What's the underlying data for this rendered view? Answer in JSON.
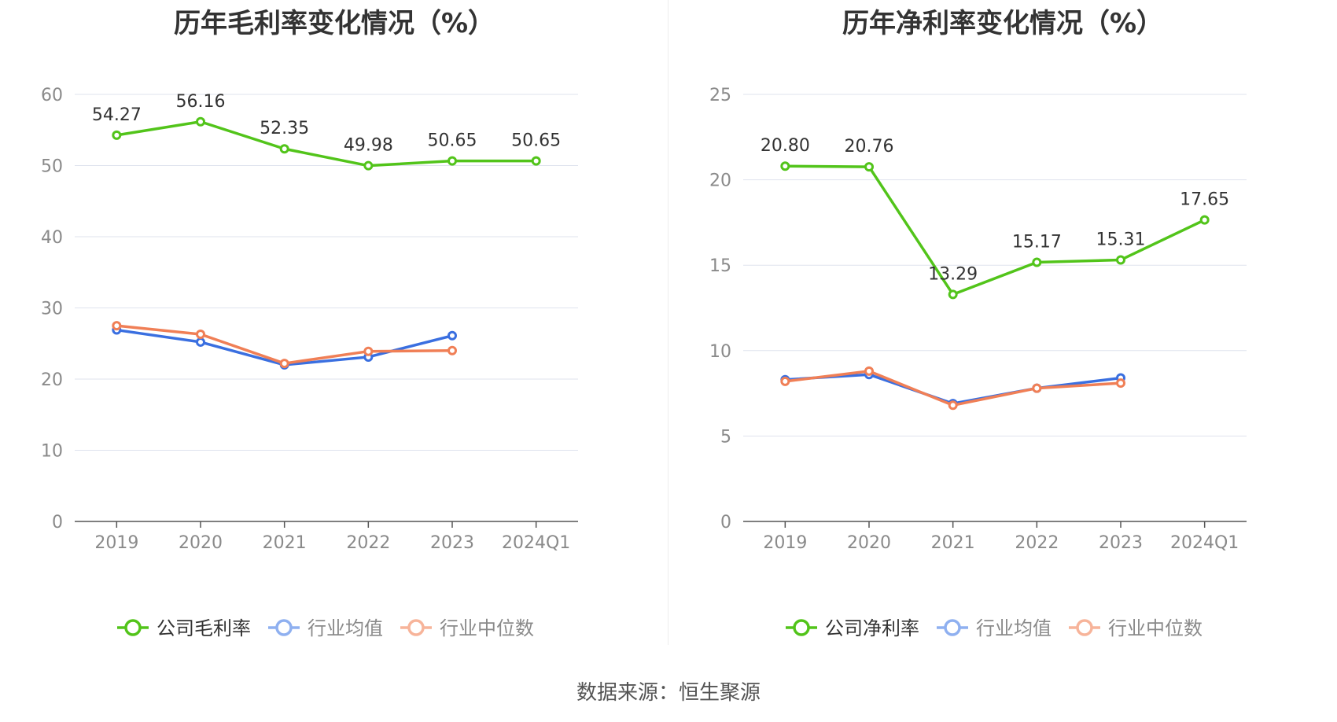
{
  "chart_data": [
    {
      "type": "line",
      "title": "历年毛利率变化情况（%）",
      "categories": [
        "2019",
        "2020",
        "2021",
        "2022",
        "2023",
        "2024Q1"
      ],
      "ylim": [
        0,
        60
      ],
      "yticks": [
        0,
        10,
        20,
        30,
        40,
        50,
        60
      ],
      "grid": true,
      "legend_position": "bottom",
      "series": [
        {
          "name": "公司毛利率",
          "color": "#52c41a",
          "values": [
            54.27,
            56.16,
            52.35,
            49.98,
            50.65,
            50.65
          ],
          "labels": [
            "54.27",
            "56.16",
            "52.35",
            "49.98",
            "50.65",
            "50.65"
          ]
        },
        {
          "name": "行业均值",
          "color": "#3a6fe0",
          "values": [
            26.9,
            25.2,
            22.0,
            23.1,
            26.1,
            null
          ]
        },
        {
          "name": "行业中位数",
          "color": "#f07f56",
          "values": [
            27.5,
            26.3,
            22.2,
            23.9,
            24.0,
            null
          ]
        }
      ]
    },
    {
      "type": "line",
      "title": "历年净利率变化情况（%）",
      "categories": [
        "2019",
        "2020",
        "2021",
        "2022",
        "2023",
        "2024Q1"
      ],
      "ylim": [
        0,
        25
      ],
      "yticks": [
        0,
        5,
        10,
        15,
        20,
        25
      ],
      "grid": true,
      "legend_position": "bottom",
      "series": [
        {
          "name": "公司净利率",
          "color": "#52c41a",
          "values": [
            20.8,
            20.76,
            13.29,
            15.17,
            15.31,
            17.65
          ],
          "labels": [
            "20.80",
            "20.76",
            "13.29",
            "15.17",
            "15.31",
            "17.65"
          ]
        },
        {
          "name": "行业均值",
          "color": "#3a6fe0",
          "values": [
            8.3,
            8.6,
            6.9,
            7.8,
            8.4,
            null
          ]
        },
        {
          "name": "行业中位数",
          "color": "#f07f56",
          "values": [
            8.2,
            8.8,
            6.8,
            7.8,
            8.1,
            null
          ]
        }
      ]
    }
  ],
  "source": "数据来源：恒生聚源"
}
